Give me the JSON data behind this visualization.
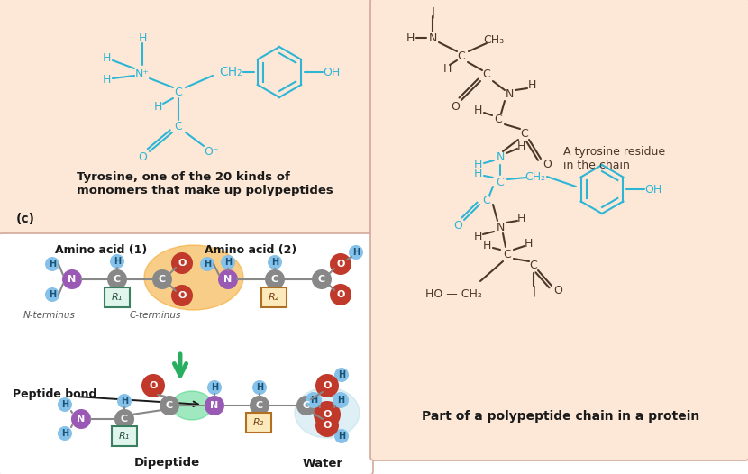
{
  "bg_salmon": "#fde8d8",
  "bg_white": "#ffffff",
  "cyan": "#2db5d5",
  "dark": "#4a3728",
  "black": "#1a1a1a",
  "gray_bond": "#666666",
  "purple_n": "#9b59b6",
  "red_o": "#c0392b",
  "blue_h": "#85c1e9",
  "green_arrow": "#27ae60",
  "orange_glow": "#e67e22",
  "tyrosine_caption": "Tyrosine, one of the 20 kinds of\nmonomers that make up polypeptides",
  "polypeptide_caption": "Part of a polypeptide chain in a protein",
  "label_c": "(c)",
  "amino1_label": "Amino acid (1)",
  "amino2_label": "Amino acid (2)",
  "nterm_label": "N-terminus",
  "cterm_label": "C-terminus",
  "peptide_bond_label": "Peptide bond",
  "dipeptide_label": "Dipeptide",
  "water_label": "Water",
  "tyrosine_residue_label": "A tyrosine residue\nin the chain"
}
